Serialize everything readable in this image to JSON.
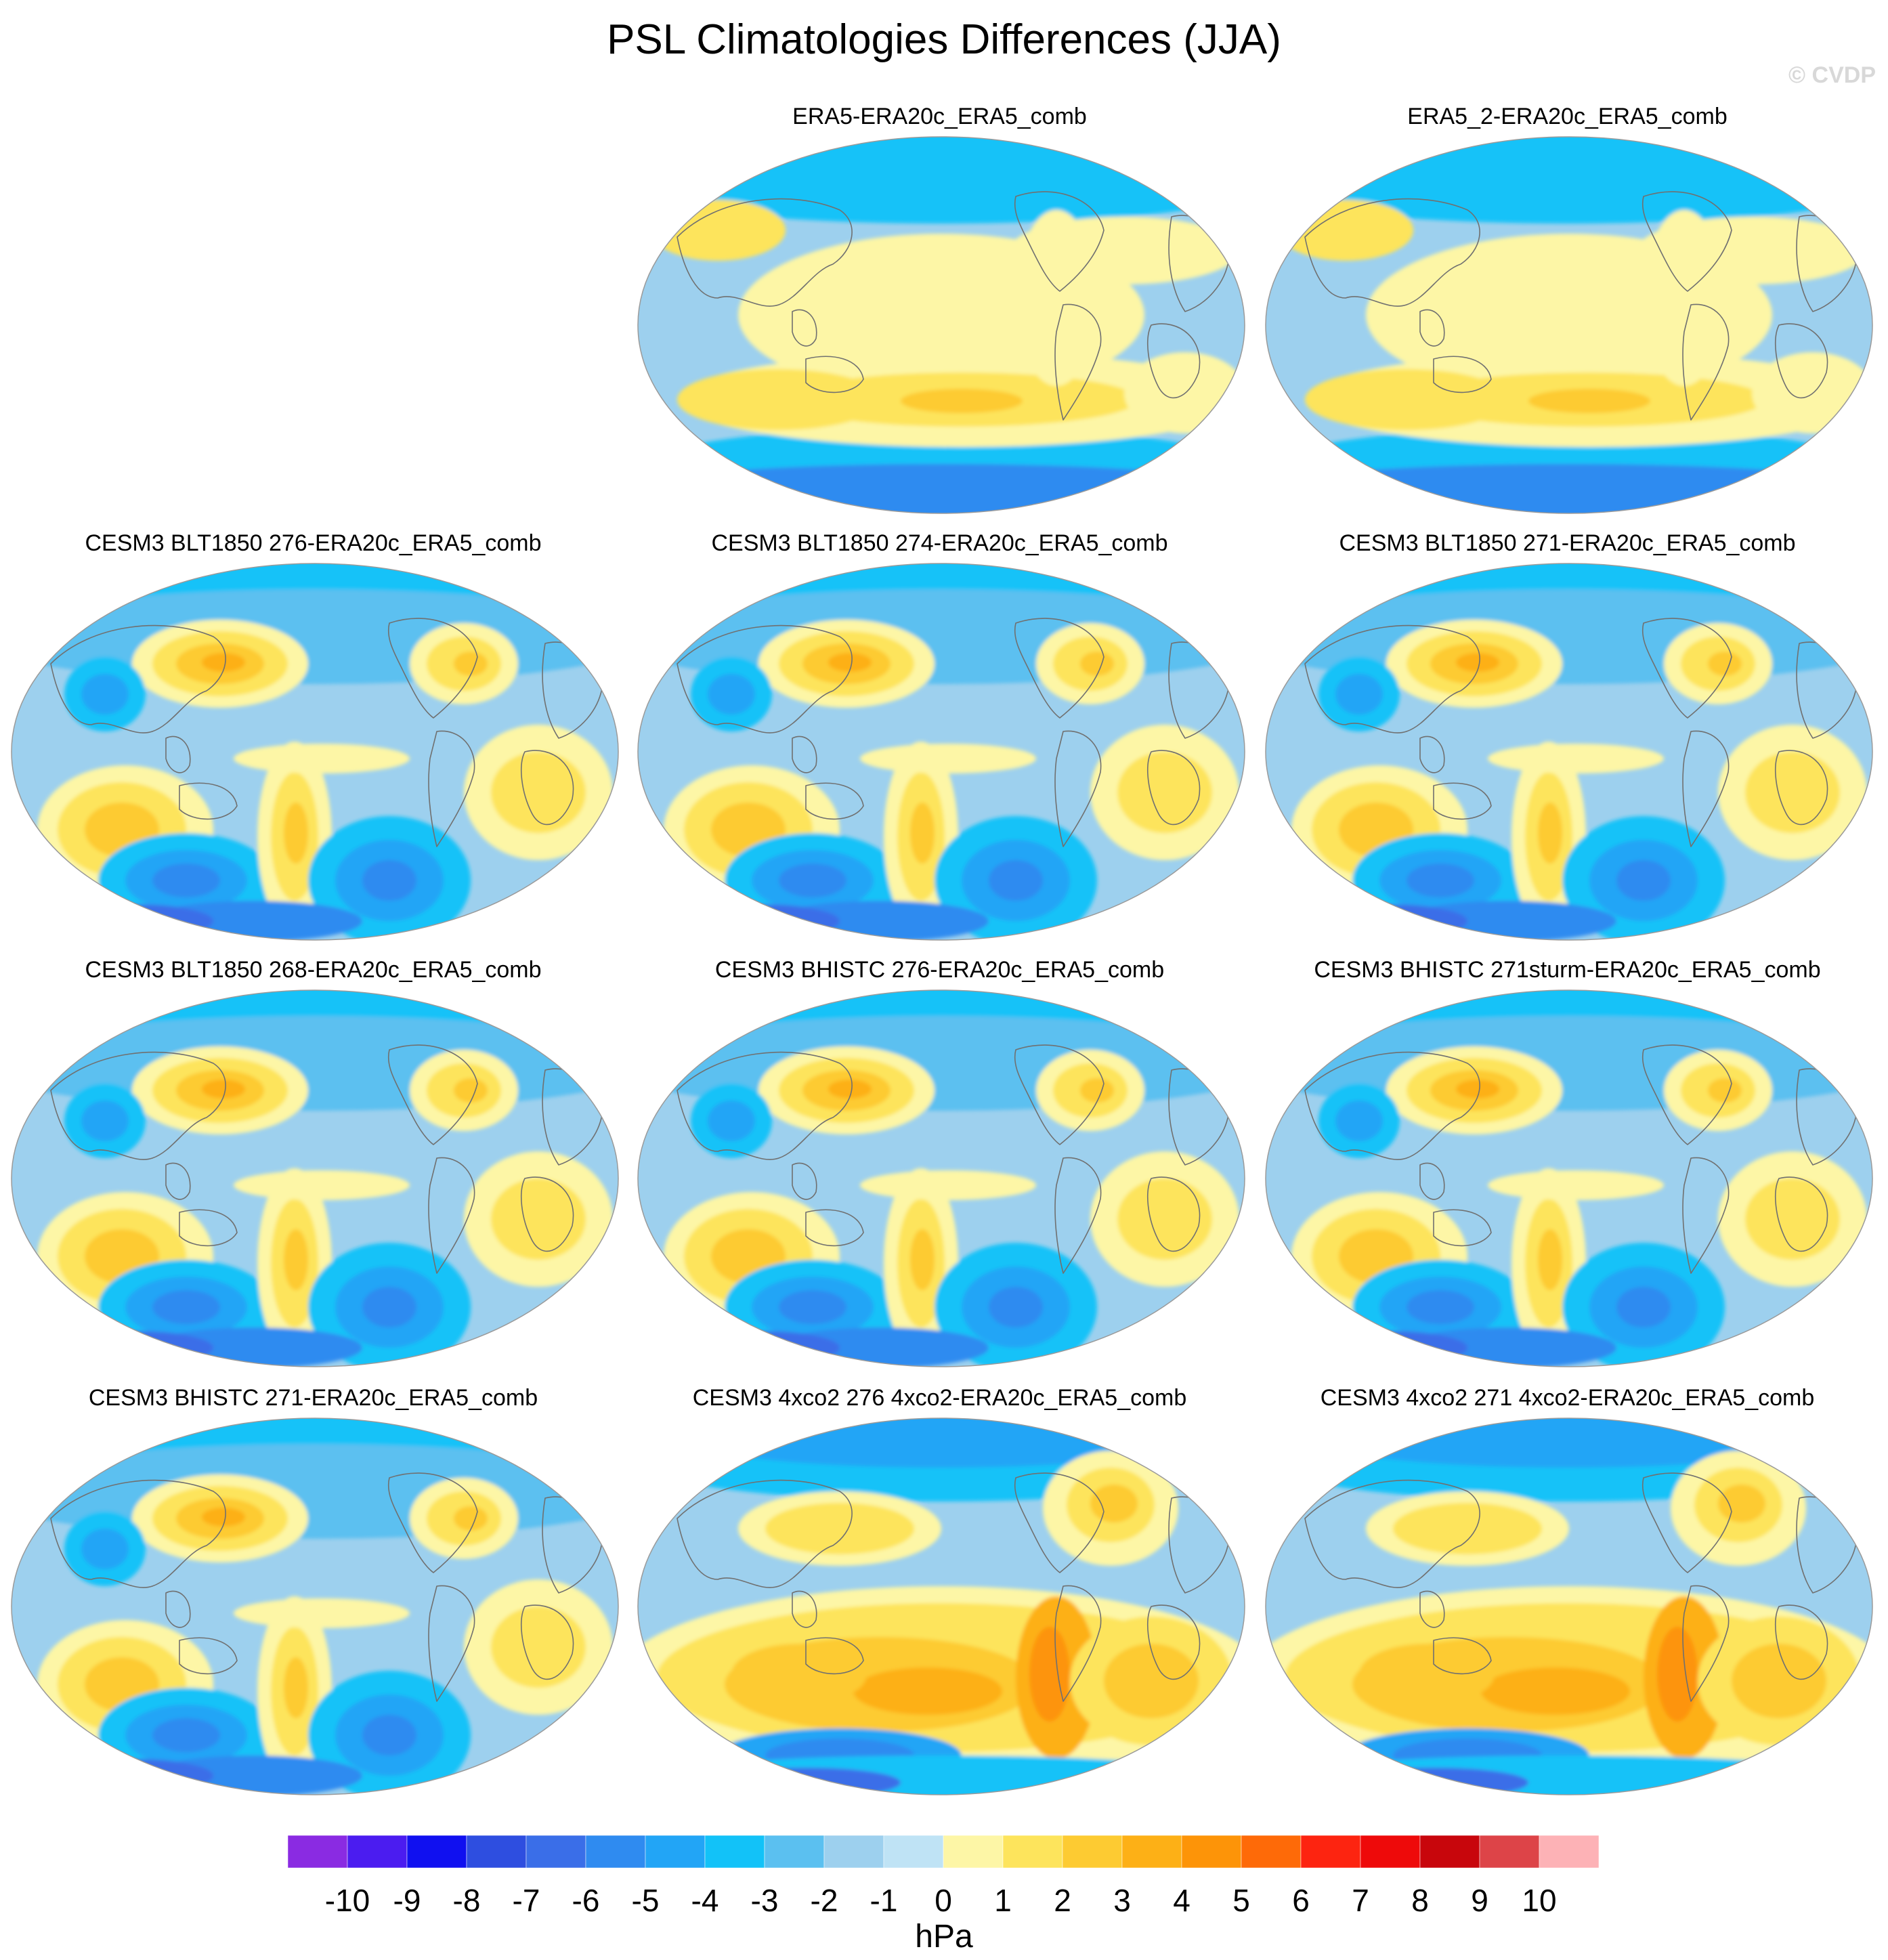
{
  "title": "PSL Climatologies Differences (JJA)",
  "copyright": "© CVDP",
  "units": "hPa",
  "panels": [
    {
      "title": "ERA5-ERA20c_ERA5_comb",
      "pattern": "reanalysis"
    },
    {
      "title": "ERA5_2-ERA20c_ERA5_comb",
      "pattern": "reanalysis"
    },
    {
      "title": "CESM3 BLT1850 276-ERA20c_ERA5_comb",
      "pattern": "model"
    },
    {
      "title": "CESM3 BLT1850 274-ERA20c_ERA5_comb",
      "pattern": "model"
    },
    {
      "title": "CESM3 BLT1850 271-ERA20c_ERA5_comb",
      "pattern": "model"
    },
    {
      "title": "CESM3 BLT1850 268-ERA20c_ERA5_comb",
      "pattern": "model"
    },
    {
      "title": "CESM3 BHISTC 276-ERA20c_ERA5_comb",
      "pattern": "model"
    },
    {
      "title": "CESM3 BHISTC 271sturm-ERA20c_ERA5_comb",
      "pattern": "model"
    },
    {
      "title": "CESM3 BHISTC 271-ERA20c_ERA5_comb",
      "pattern": "model"
    },
    {
      "title": "CESM3 4xco2 276 4xco2-ERA20c_ERA5_comb",
      "pattern": "warm"
    },
    {
      "title": "CESM3 4xco2 271 4xco2-ERA20c_ERA5_comb",
      "pattern": "warm"
    }
  ],
  "colorbar": {
    "tick_labels": [
      "-10",
      "-9",
      "-8",
      "-7",
      "-6",
      "-5",
      "-4",
      "-3",
      "-2",
      "-1",
      "0",
      "1",
      "2",
      "3",
      "4",
      "5",
      "6",
      "7",
      "8",
      "9",
      "10"
    ],
    "colors": [
      "#8a2be2",
      "#4b1cf0",
      "#1010f0",
      "#2e4ee0",
      "#3a6ee8",
      "#2f8bf0",
      "#22a5f6",
      "#12c2f8",
      "#5bc0f0",
      "#9dd0ee",
      "#bfe3f5",
      "#fdf6a6",
      "#fde45c",
      "#fdcb32",
      "#fdb016",
      "#fd9408",
      "#fe6a08",
      "#fd2410",
      "#ee0a0a",
      "#c8060c",
      "#dd4448",
      "#fdb2b6"
    ]
  },
  "legend_colors": {
    "land_outline": "#707070",
    "map_border": "#9a9a9a"
  }
}
